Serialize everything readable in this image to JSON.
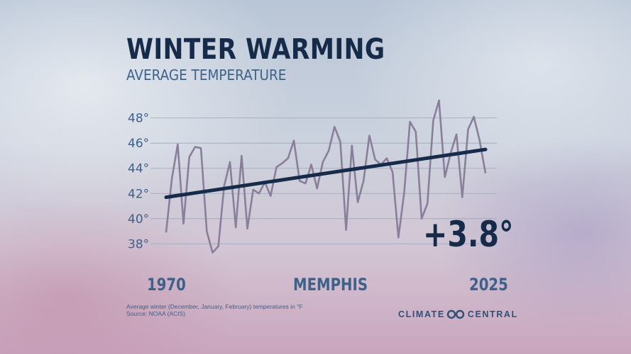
{
  "title": "WINTER WARMING",
  "subtitle": "AVERAGE TEMPERATURE",
  "change_label": "+3.8°",
  "location": "MEMPHIS",
  "footnote": "Average winter (December, January, February) temperatures in °F",
  "source": "Source: NOAA (ACIS)",
  "brand": {
    "left": "CLIMATE",
    "right": "CENTRAL",
    "logo_icon": "infinity-logo-icon"
  },
  "colors": {
    "navy": "#162a4a",
    "blue_text": "#3e6189",
    "series_line": "#8a7f9a",
    "gridline": "#9aa7bb"
  },
  "chart_data": {
    "type": "line",
    "title": "WINTER WARMING",
    "subtitle": "AVERAGE TEMPERATURE",
    "xlabel": "",
    "ylabel": "",
    "x_start_label": "1970",
    "x_end_label": "2025",
    "x": [
      1970,
      1971,
      1972,
      1973,
      1974,
      1975,
      1976,
      1977,
      1978,
      1979,
      1980,
      1981,
      1982,
      1983,
      1984,
      1985,
      1986,
      1987,
      1988,
      1989,
      1990,
      1991,
      1992,
      1993,
      1994,
      1995,
      1996,
      1997,
      1998,
      1999,
      2000,
      2001,
      2002,
      2003,
      2004,
      2005,
      2006,
      2007,
      2008,
      2009,
      2010,
      2011,
      2012,
      2013,
      2014,
      2015,
      2016,
      2017,
      2018,
      2019,
      2020,
      2021,
      2022,
      2023,
      2024,
      2025
    ],
    "xlim": [
      1970,
      2025
    ],
    "yticks": [
      38,
      40,
      42,
      44,
      46,
      48
    ],
    "ytick_labels": [
      "38°",
      "40°",
      "42°",
      "44°",
      "46°",
      "48°"
    ],
    "ylim": [
      36.5,
      49.5
    ],
    "grid": true,
    "series": [
      {
        "values": [
          38.9,
          43.2,
          45.9,
          39.6,
          44.9,
          45.7,
          45.6,
          39.0,
          37.3,
          37.8,
          42.6,
          44.5,
          39.3,
          45.0,
          39.2,
          42.3,
          42.0,
          42.9,
          41.8,
          44.1,
          44.4,
          44.8,
          46.2,
          43.0,
          42.8,
          44.3,
          42.4,
          44.5,
          45.4,
          47.3,
          46.1,
          39.1,
          45.8,
          41.3,
          43.0,
          46.6,
          44.7,
          44.3,
          44.8,
          43.7,
          38.5,
          42.1,
          47.7,
          46.9,
          40.0,
          41.2,
          47.8,
          49.4,
          43.3,
          45.2,
          46.7,
          41.7,
          47.1,
          48.1,
          46.2,
          43.6
        ]
      },
      {
        "trend": true,
        "x": [
          1970,
          2025
        ],
        "values": [
          41.7,
          45.5
        ]
      }
    ]
  }
}
